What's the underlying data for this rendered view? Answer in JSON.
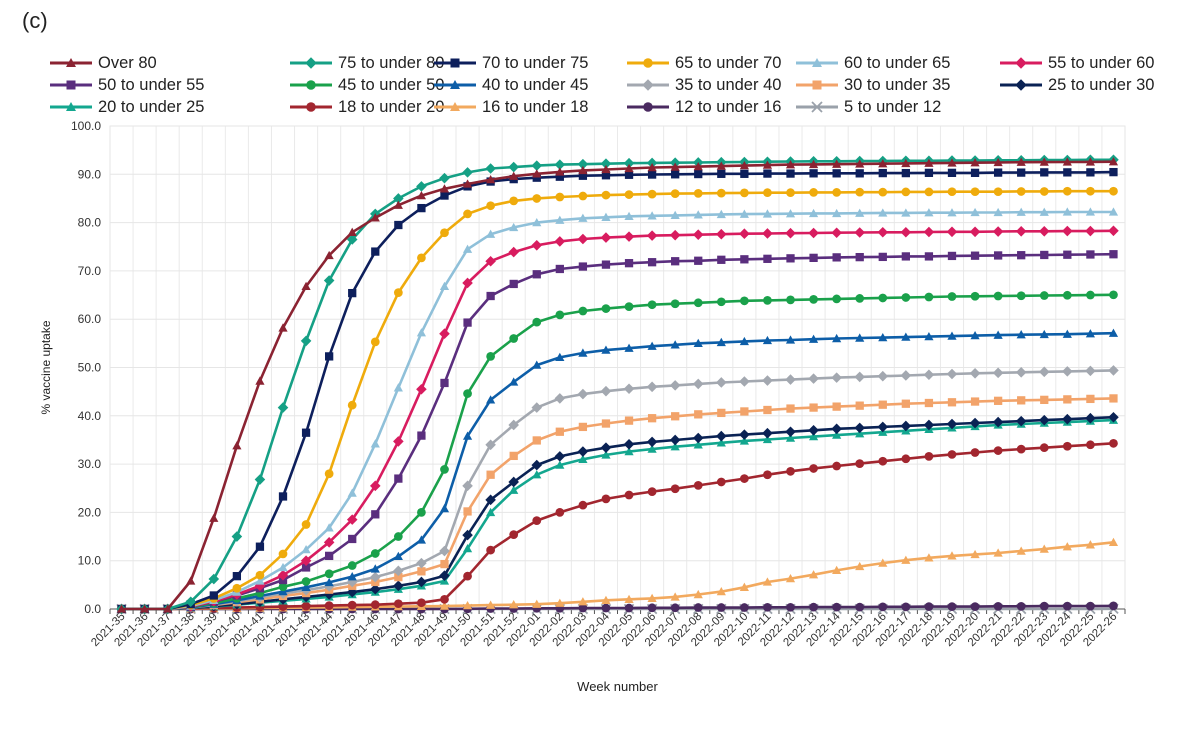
{
  "panel_label": "(c)",
  "chart_data": {
    "type": "line",
    "title": "",
    "xlabel": "Week number",
    "ylabel": "% vaccine uptake",
    "ylim": [
      0,
      100
    ],
    "yticks": [
      "0.0",
      "10.0",
      "20.0",
      "30.0",
      "40.0",
      "50.0",
      "60.0",
      "70.0",
      "80.0",
      "90.0",
      "100.0"
    ],
    "grid": "vertical and horizontal",
    "legend_position": "top",
    "categories": [
      "2021-35",
      "2021-36",
      "2021-37",
      "2021-38",
      "2021-39",
      "2021-40",
      "2021-41",
      "2021-42",
      "2021-43",
      "2021-44",
      "2021-45",
      "2021-46",
      "2021-47",
      "2021-48",
      "2021-49",
      "2021-50",
      "2021-51",
      "2021-52",
      "2022-01",
      "2022-02",
      "2022-03",
      "2022-04",
      "2022-05",
      "2022-06",
      "2022-07",
      "2022-08",
      "2022-09",
      "2022-10",
      "2022-11",
      "2022-12",
      "2022-13",
      "2022-14",
      "2022-15",
      "2022-16",
      "2022-17",
      "2022-18",
      "2022-19",
      "2022-20",
      "2022-21",
      "2022-22",
      "2022-23",
      "2022-24",
      "2022-25",
      "2022-26"
    ],
    "series": [
      {
        "name": "Over 80",
        "color": "#8b2332",
        "marker": "triangle",
        "values": [
          0,
          0,
          0,
          5.8,
          18.8,
          33.8,
          47.2,
          58.2,
          66.8,
          73.2,
          78,
          81,
          83.6,
          85.6,
          87,
          88,
          88.9,
          89.6,
          90.1,
          90.5,
          90.8,
          91,
          91.2,
          91.4,
          91.5,
          91.6,
          91.7,
          91.8,
          91.9,
          92,
          92.05,
          92.1,
          92.15,
          92.2,
          92.25,
          92.3,
          92.35,
          92.4,
          92.45,
          92.5,
          92.52,
          92.55,
          92.57,
          92.6
        ]
      },
      {
        "name": "75 to under 80",
        "color": "#15a085",
        "marker": "diamond",
        "values": [
          0,
          0,
          0,
          1.5,
          6.2,
          15,
          26.8,
          41.7,
          55.5,
          68,
          76.5,
          81.8,
          85,
          87.5,
          89.2,
          90.4,
          91.2,
          91.5,
          91.8,
          92,
          92.1,
          92.2,
          92.3,
          92.35,
          92.4,
          92.45,
          92.5,
          92.55,
          92.6,
          92.65,
          92.7,
          92.7,
          92.75,
          92.75,
          92.8,
          92.8,
          92.85,
          92.85,
          92.9,
          92.9,
          92.95,
          92.95,
          93,
          93
        ]
      },
      {
        "name": "70 to under 75",
        "color": "#0d1f5c",
        "marker": "square",
        "values": [
          0,
          0,
          0,
          1,
          2.8,
          6.8,
          12.9,
          23.3,
          36.5,
          52.3,
          65.4,
          74,
          79.5,
          83,
          85.6,
          87.5,
          88.5,
          89,
          89.3,
          89.5,
          89.7,
          89.8,
          89.9,
          89.95,
          90,
          90.05,
          90.1,
          90.1,
          90.15,
          90.15,
          90.2,
          90.2,
          90.2,
          90.25,
          90.25,
          90.3,
          90.3,
          90.3,
          90.35,
          90.35,
          90.4,
          90.4,
          90.4,
          90.45
        ]
      },
      {
        "name": "65 to under 70",
        "color": "#efab0c",
        "marker": "circle",
        "values": [
          0,
          0,
          0,
          0.8,
          2.2,
          4.3,
          7,
          11.4,
          17.5,
          28,
          42.2,
          55.3,
          65.5,
          72.7,
          77.9,
          81.8,
          83.5,
          84.5,
          85,
          85.3,
          85.5,
          85.7,
          85.8,
          85.9,
          86,
          86.05,
          86.1,
          86.15,
          86.2,
          86.2,
          86.25,
          86.25,
          86.3,
          86.3,
          86.35,
          86.35,
          86.4,
          86.4,
          86.4,
          86.45,
          86.45,
          86.5,
          86.5,
          86.5
        ]
      },
      {
        "name": "60 to under 65",
        "color": "#8fc0d9",
        "marker": "triangle",
        "values": [
          0,
          0,
          0,
          0.6,
          1.8,
          3.5,
          5.8,
          8.6,
          12.3,
          16.8,
          24,
          34.2,
          45.8,
          57.2,
          66.8,
          74.5,
          77.6,
          79,
          80,
          80.5,
          80.9,
          81.1,
          81.3,
          81.4,
          81.5,
          81.6,
          81.7,
          81.75,
          81.8,
          81.85,
          81.9,
          81.9,
          81.95,
          82,
          82,
          82.05,
          82.05,
          82.1,
          82.1,
          82.15,
          82.15,
          82.2,
          82.2,
          82.2
        ]
      },
      {
        "name": "55 to under 60",
        "color": "#d81c5f",
        "marker": "diamond",
        "values": [
          0,
          0,
          0,
          0.5,
          1.6,
          3,
          4.8,
          7,
          10,
          13.8,
          18.5,
          25.5,
          34.7,
          45.5,
          57,
          67.5,
          72,
          73.9,
          75.3,
          76.1,
          76.6,
          76.9,
          77.1,
          77.3,
          77.4,
          77.5,
          77.6,
          77.7,
          77.75,
          77.8,
          77.85,
          77.9,
          77.95,
          78,
          78,
          78.05,
          78.1,
          78.1,
          78.15,
          78.2,
          78.2,
          78.25,
          78.25,
          78.3
        ]
      },
      {
        "name": "50 to under 55",
        "color": "#5a2e7e",
        "marker": "square",
        "values": [
          0,
          0,
          0,
          0.5,
          1.5,
          2.8,
          4.3,
          6,
          8.6,
          11,
          14.5,
          19.6,
          27,
          35.9,
          46.8,
          59.3,
          64.8,
          67.3,
          69.3,
          70.4,
          70.9,
          71.3,
          71.6,
          71.8,
          72,
          72.1,
          72.3,
          72.4,
          72.5,
          72.6,
          72.7,
          72.8,
          72.85,
          72.9,
          73,
          73,
          73.1,
          73.15,
          73.2,
          73.25,
          73.3,
          73.35,
          73.4,
          73.45
        ]
      },
      {
        "name": "45 to under 50",
        "color": "#1aa14b",
        "marker": "circle",
        "values": [
          0,
          0,
          0,
          0.4,
          1.2,
          2.2,
          3.3,
          4.6,
          5.7,
          7.3,
          9,
          11.5,
          15,
          20,
          28.9,
          44.6,
          52.3,
          56,
          59.4,
          60.9,
          61.7,
          62.2,
          62.6,
          63,
          63.2,
          63.4,
          63.6,
          63.8,
          63.9,
          64,
          64.1,
          64.2,
          64.3,
          64.4,
          64.5,
          64.6,
          64.7,
          64.75,
          64.8,
          64.85,
          64.9,
          64.95,
          65,
          65.05
        ]
      },
      {
        "name": "40 to under 45",
        "color": "#0d5ea8",
        "marker": "triangle",
        "values": [
          0,
          0,
          0,
          0.3,
          1,
          1.8,
          2.7,
          3.6,
          4.5,
          5.5,
          6.7,
          8.3,
          10.9,
          14.3,
          20.8,
          35.8,
          43.3,
          47,
          50.5,
          52.1,
          53,
          53.6,
          54,
          54.4,
          54.7,
          55,
          55.2,
          55.4,
          55.6,
          55.7,
          55.85,
          56,
          56.1,
          56.2,
          56.3,
          56.4,
          56.5,
          56.6,
          56.7,
          56.8,
          56.85,
          56.9,
          57,
          57.1
        ]
      },
      {
        "name": "35 to under 40",
        "color": "#a3a8b0",
        "marker": "diamond",
        "values": [
          0,
          0,
          0,
          0.3,
          0.9,
          1.6,
          2.4,
          3.2,
          3.9,
          4.7,
          5.6,
          6.6,
          7.9,
          9.5,
          12,
          25.5,
          34,
          38.1,
          41.7,
          43.6,
          44.5,
          45.1,
          45.6,
          46,
          46.3,
          46.6,
          46.9,
          47.1,
          47.3,
          47.5,
          47.7,
          47.9,
          48.05,
          48.2,
          48.35,
          48.5,
          48.65,
          48.8,
          48.9,
          49,
          49.1,
          49.2,
          49.3,
          49.4
        ]
      },
      {
        "name": "30 to under 35",
        "color": "#f2a36a",
        "marker": "square",
        "values": [
          0,
          0,
          0,
          0.3,
          0.8,
          1.4,
          2,
          2.7,
          3.3,
          4,
          4.8,
          5.6,
          6.6,
          7.8,
          9.3,
          20.2,
          27.8,
          31.7,
          34.9,
          36.7,
          37.7,
          38.4,
          39,
          39.5,
          39.9,
          40.3,
          40.6,
          40.9,
          41.2,
          41.5,
          41.7,
          41.9,
          42.1,
          42.3,
          42.5,
          42.65,
          42.8,
          42.95,
          43.1,
          43.2,
          43.3,
          43.4,
          43.5,
          43.6
        ]
      },
      {
        "name": "25 to under 30",
        "color": "#0a2254",
        "marker": "diamond",
        "values": [
          0,
          0,
          0,
          0.2,
          0.6,
          1,
          1.5,
          2,
          2.5,
          3,
          3.5,
          4.1,
          4.8,
          5.6,
          6.9,
          15.3,
          22.6,
          26.3,
          29.8,
          31.6,
          32.6,
          33.4,
          34.1,
          34.6,
          35,
          35.4,
          35.8,
          36.1,
          36.4,
          36.7,
          37,
          37.3,
          37.5,
          37.7,
          37.9,
          38.1,
          38.3,
          38.5,
          38.7,
          38.9,
          39.1,
          39.3,
          39.5,
          39.7
        ]
      },
      {
        "name": "20 to under 25",
        "color": "#13a78f",
        "marker": "triangle",
        "values": [
          0,
          0,
          0,
          0.2,
          0.5,
          0.9,
          1.3,
          1.7,
          2.1,
          2.5,
          3,
          3.5,
          4.1,
          4.8,
          5.8,
          12.5,
          20,
          24.6,
          27.8,
          29.8,
          31,
          31.9,
          32.6,
          33.1,
          33.6,
          34,
          34.4,
          34.8,
          35.1,
          35.4,
          35.7,
          36,
          36.3,
          36.6,
          36.9,
          37.2,
          37.5,
          37.8,
          38.1,
          38.3,
          38.5,
          38.7,
          38.9,
          39.1
        ]
      },
      {
        "name": "18 to under 20",
        "color": "#a2262f",
        "marker": "circle",
        "values": [
          0,
          0,
          0,
          0.1,
          0.2,
          0.3,
          0.4,
          0.5,
          0.6,
          0.7,
          0.8,
          0.9,
          1.1,
          1.3,
          2,
          6.8,
          12.2,
          15.4,
          18.3,
          20,
          21.5,
          22.8,
          23.6,
          24.3,
          24.9,
          25.6,
          26.3,
          27,
          27.8,
          28.5,
          29.1,
          29.6,
          30.1,
          30.6,
          31.1,
          31.6,
          32,
          32.4,
          32.8,
          33.1,
          33.4,
          33.7,
          34,
          34.3
        ]
      },
      {
        "name": "16 to under 18",
        "color": "#f2a95e",
        "marker": "triangle",
        "values": [
          0,
          0,
          0,
          0.05,
          0.1,
          0.15,
          0.2,
          0.25,
          0.3,
          0.35,
          0.4,
          0.45,
          0.5,
          0.55,
          0.6,
          0.7,
          0.8,
          0.9,
          1,
          1.2,
          1.5,
          1.8,
          2,
          2.2,
          2.5,
          3,
          3.6,
          4.5,
          5.6,
          6.3,
          7.1,
          8,
          8.8,
          9.5,
          10.1,
          10.6,
          11,
          11.3,
          11.6,
          12,
          12.4,
          12.9,
          13.3,
          13.8
        ]
      },
      {
        "name": "12 to under 16",
        "color": "#4a2a60",
        "marker": "circle",
        "values": [
          0,
          0,
          0,
          0,
          0,
          0,
          0,
          0,
          0,
          0,
          0,
          0,
          0,
          0,
          0,
          0.05,
          0.1,
          0.1,
          0.15,
          0.15,
          0.2,
          0.2,
          0.2,
          0.25,
          0.25,
          0.3,
          0.3,
          0.3,
          0.35,
          0.35,
          0.4,
          0.4,
          0.4,
          0.45,
          0.45,
          0.5,
          0.5,
          0.5,
          0.55,
          0.55,
          0.6,
          0.6,
          0.6,
          0.65
        ]
      },
      {
        "name": "5 to under 12",
        "color": "#9aa1aa",
        "marker": "cross",
        "values": [
          0,
          0,
          0,
          0,
          0,
          0,
          0,
          0,
          0,
          0,
          0,
          0,
          0,
          0,
          0,
          0,
          0,
          0,
          0,
          0,
          0,
          0,
          0,
          0,
          0,
          0,
          0,
          0,
          0,
          0,
          0,
          0,
          0,
          0,
          0,
          0,
          0,
          0,
          0,
          0,
          0,
          0,
          0,
          0.05
        ]
      }
    ]
  }
}
